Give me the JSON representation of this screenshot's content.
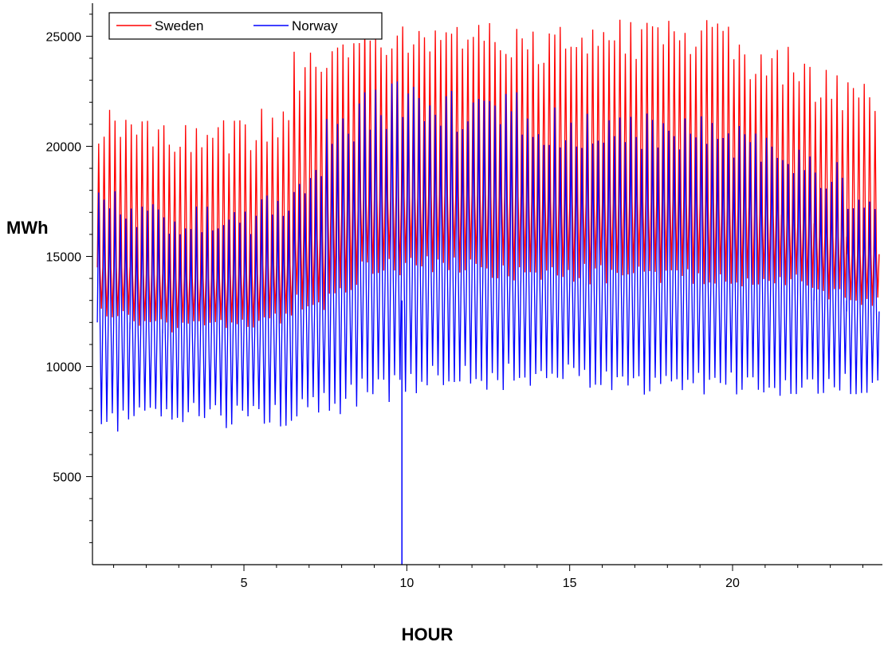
{
  "chart_data": {
    "type": "line",
    "title": "",
    "xlabel": "HOUR",
    "ylabel": "MWh",
    "xlim": [
      0.35,
      24.6
    ],
    "ylim": [
      1000,
      26500
    ],
    "x_ticks": [
      {
        "value": 5,
        "label": "5"
      },
      {
        "value": 10,
        "label": "10"
      },
      {
        "value": 15,
        "label": "15"
      },
      {
        "value": 20,
        "label": "20"
      }
    ],
    "y_ticks": [
      {
        "value": 5000,
        "label": "5000"
      },
      {
        "value": 10000,
        "label": "10000"
      },
      {
        "value": 15000,
        "label": "15000"
      },
      {
        "value": 20000,
        "label": "20000"
      },
      {
        "value": 25000,
        "label": "25000"
      }
    ],
    "grid": false,
    "legend_position": "top-left",
    "hour_bins": [
      1,
      2,
      3,
      4,
      5,
      6,
      7,
      8,
      9,
      10,
      11,
      12,
      13,
      14,
      15,
      16,
      17,
      18,
      19,
      20,
      21,
      22,
      23,
      24
    ],
    "samples_per_hour": 6,
    "series": [
      {
        "name": "Sweden",
        "color": "#ff0000",
        "hourly_min": [
          12000,
          11700,
          11500,
          11500,
          11600,
          11800,
          12500,
          13300,
          14000,
          14100,
          14100,
          14000,
          13900,
          13800,
          13800,
          13700,
          13700,
          13700,
          13700,
          13600,
          13600,
          13500,
          13000,
          12500
        ],
        "hourly_max": [
          22000,
          21500,
          21300,
          21300,
          21500,
          21900,
          24500,
          25400,
          25600,
          26000,
          26100,
          26000,
          25800,
          25700,
          25600,
          25600,
          25800,
          26100,
          25900,
          25600,
          25000,
          24800,
          23500,
          23000
        ],
        "level": [
          14500,
          14200,
          14000,
          14000,
          14200,
          14600,
          15800,
          17100,
          17600,
          17700,
          17800,
          17800,
          17700,
          17500,
          17400,
          17400,
          17500,
          17500,
          17400,
          17200,
          16900,
          16500,
          15900,
          15100
        ]
      },
      {
        "name": "Norway",
        "color": "#0000ff",
        "hourly_min": [
          6800,
          7000,
          7400,
          7200,
          7100,
          7200,
          7600,
          7800,
          8200,
          8600,
          8800,
          8900,
          8900,
          8900,
          8900,
          8700,
          8700,
          8600,
          8600,
          8500,
          8500,
          8600,
          8600,
          8500
        ],
        "hourly_max": [
          18000,
          17500,
          17500,
          17300,
          17400,
          17800,
          19000,
          21500,
          22700,
          23000,
          22900,
          22800,
          22500,
          22000,
          21800,
          21500,
          21500,
          21500,
          21400,
          21200,
          21000,
          20500,
          19500,
          18500
        ],
        "level": [
          12000,
          11700,
          11500,
          11500,
          11600,
          11800,
          12500,
          13300,
          14000,
          14100,
          14100,
          14000,
          13900,
          13800,
          13800,
          13700,
          13700,
          13700,
          13700,
          13600,
          13600,
          13500,
          13000,
          12500
        ],
        "outlier": {
          "x": 9.85,
          "y": 1000
        }
      }
    ]
  }
}
